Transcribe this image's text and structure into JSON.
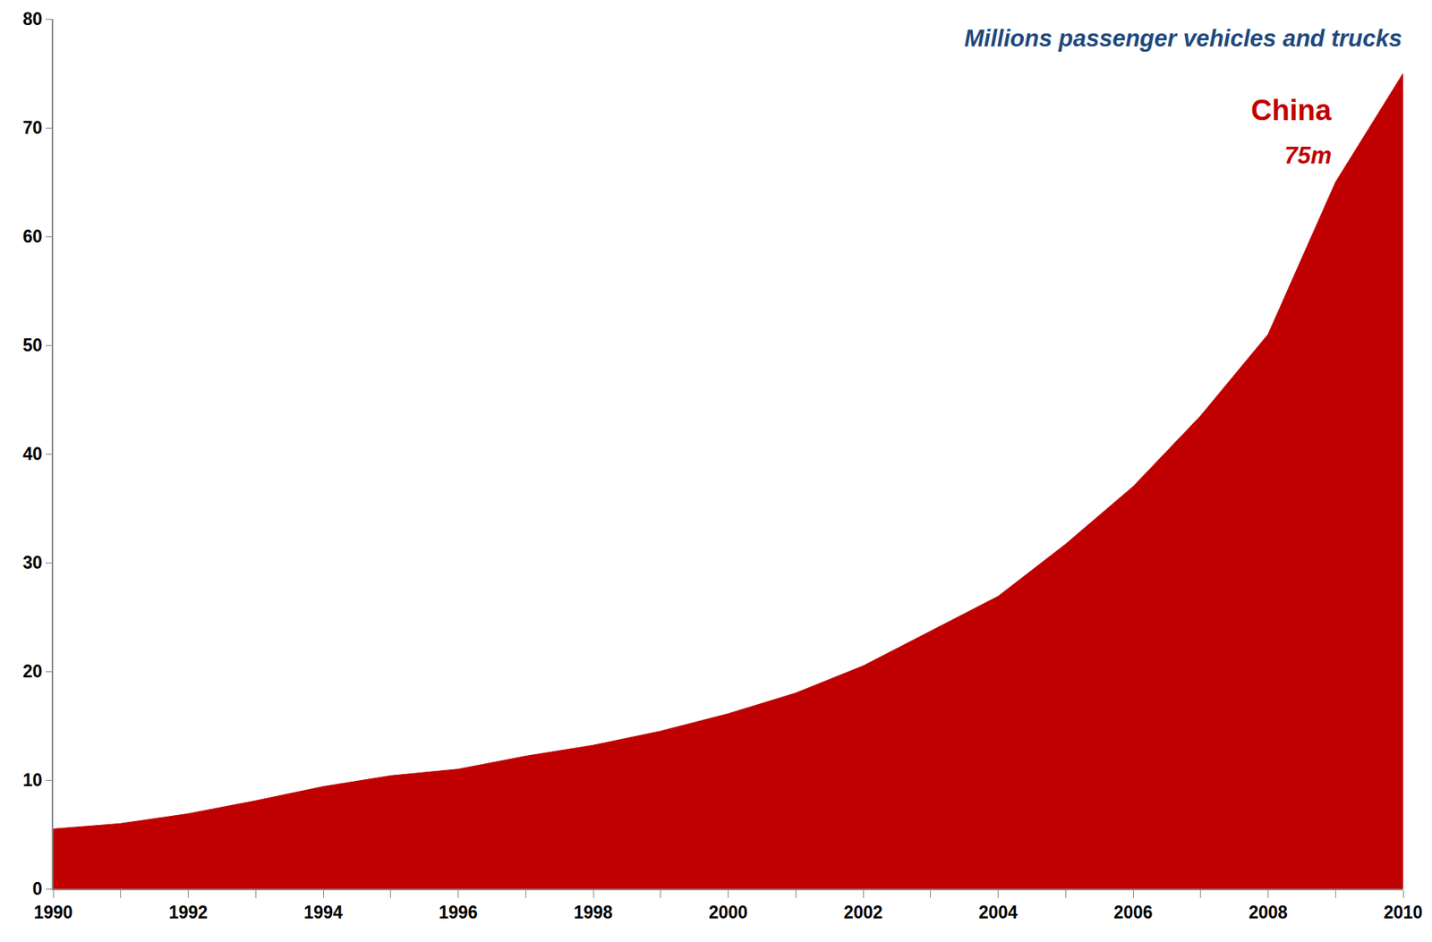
{
  "chart_data": {
    "type": "area",
    "title": "Millions passenger vehicles and trucks",
    "annotations": [
      "China",
      "75m"
    ],
    "x": [
      1990,
      1991,
      1992,
      1993,
      1994,
      1995,
      1996,
      1997,
      1998,
      1999,
      2000,
      2001,
      2002,
      2003,
      2004,
      2005,
      2006,
      2007,
      2008,
      2009,
      2010
    ],
    "values": [
      5.5,
      6.0,
      6.9,
      8.1,
      9.4,
      10.4,
      11.0,
      12.2,
      13.2,
      14.5,
      16.1,
      18.0,
      20.5,
      23.7,
      26.9,
      31.7,
      37.0,
      43.5,
      51.0,
      65.0,
      75.0
    ],
    "color": "#c00000",
    "xlim": [
      1990,
      2010
    ],
    "ylim": [
      0,
      80
    ],
    "xticks": [
      1990,
      1992,
      1994,
      1996,
      1998,
      2000,
      2002,
      2004,
      2006,
      2008,
      2010
    ],
    "yticks": [
      0,
      10,
      20,
      30,
      40,
      50,
      60,
      70,
      80
    ],
    "grid": false
  }
}
